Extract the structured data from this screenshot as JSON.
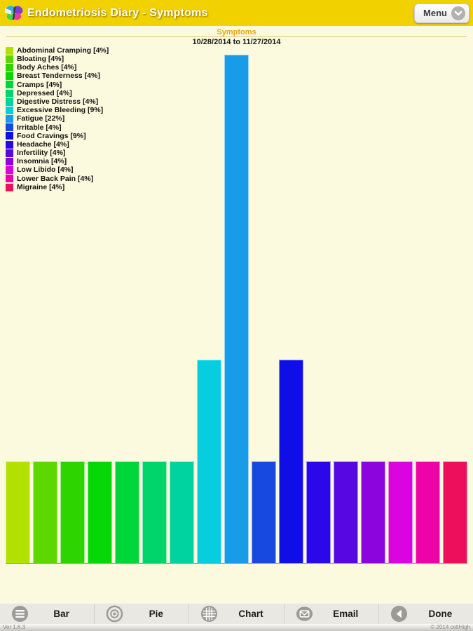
{
  "header": {
    "title": "Endometriosis Diary - Symptoms",
    "menu_label": "Menu"
  },
  "chart": {
    "title": "Symptoms",
    "date_range": "10/28/2014 to 11/27/2014"
  },
  "chart_data": {
    "type": "bar",
    "title": "Symptoms",
    "subtitle": "10/28/2014 to 11/27/2014",
    "categories": [
      "Abdominal Cramping",
      "Bloating",
      "Body Aches",
      "Breast Tenderness",
      "Cramps",
      "Depressed",
      "Digestive Distress",
      "Excessive Bleeding",
      "Fatigue",
      "Irritable",
      "Food Cravings",
      "Headache",
      "Infertility",
      "Insomnia",
      "Low Libido",
      "Lower Back Pain",
      "Migraine"
    ],
    "values": [
      4,
      4,
      4,
      4,
      4,
      4,
      4,
      9,
      22,
      4,
      9,
      4,
      4,
      4,
      4,
      4,
      4
    ],
    "relative_counts": [
      1,
      1,
      1,
      1,
      1,
      1,
      1,
      2,
      5,
      1,
      2,
      1,
      1,
      1,
      1,
      1,
      1
    ],
    "colors": [
      "#b2e000",
      "#5cd800",
      "#2ed400",
      "#06d706",
      "#00d53a",
      "#00d56c",
      "#00d3a0",
      "#06cede",
      "#189ce8",
      "#1748e0",
      "#100ee6",
      "#2a08e8",
      "#5607e2",
      "#8c05dd",
      "#d904e0",
      "#ee03a8",
      "#ed0f5c"
    ],
    "legend_labels": [
      "Abdominal Cramping [4%]",
      "Bloating [4%]",
      "Body Aches [4%]",
      "Breast Tenderness [4%]",
      "Cramps [4%]",
      "Depressed [4%]",
      "Digestive Distress [4%]",
      "Excessive Bleeding [9%]",
      "Fatigue [22%]",
      "Irritable [4%]",
      "Food Cravings [9%]",
      "Headache [4%]",
      "Infertility [4%]",
      "Insomnia [4%]",
      "Low Libido [4%]",
      "Lower Back Pain [4%]",
      "Migraine [4%]"
    ],
    "legend_position": "top-left",
    "grid": false,
    "xlabel": "",
    "ylabel": "",
    "axis_line_color": "#cd8719"
  },
  "toolbar": {
    "items": [
      {
        "label": "Bar",
        "icon": "bar-list-icon"
      },
      {
        "label": "Pie",
        "icon": "pie-chart-icon"
      },
      {
        "label": "Chart",
        "icon": "grid-chart-icon"
      },
      {
        "label": "Email",
        "icon": "email-icon"
      },
      {
        "label": "Done",
        "icon": "back-arrow-icon"
      }
    ]
  },
  "footer": {
    "version": "Ver 1.6.3",
    "copyright": "© 2014 cellHigh"
  },
  "colors": {
    "header_bg": "#f2d100",
    "content_bg": "#fcfade",
    "accent_title": "#e9a50c",
    "toolbar_bg": "#eae8e3"
  }
}
